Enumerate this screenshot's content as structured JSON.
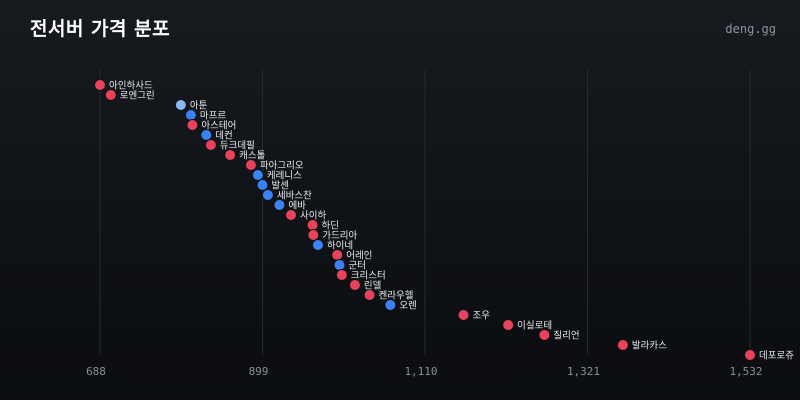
{
  "header": {
    "title": "전서버 가격 분포",
    "brand": "deng.gg"
  },
  "colors": {
    "red": "#e8435a",
    "blue": "#3b82f6",
    "light_blue": "#8ab8f5",
    "grid": "#262b33",
    "point_outline": "#0f1216"
  },
  "chart_data": {
    "type": "scatter",
    "title": "전서버 가격 분포",
    "xlabel": "",
    "ylabel": "",
    "xlim": [
      688,
      1532
    ],
    "x_ticks": [
      688,
      899,
      1110,
      1321,
      1532
    ],
    "x_tick_labels": [
      "688",
      "899",
      "1,110",
      "1,321",
      "1,532"
    ],
    "grid": "vertical",
    "points": [
      {
        "label": "아인하사드",
        "x": 688,
        "color": "red"
      },
      {
        "label": "로엔그린",
        "x": 702,
        "color": "red"
      },
      {
        "label": "아툰",
        "x": 793,
        "color": "light_blue"
      },
      {
        "label": "마프르",
        "x": 806,
        "color": "blue"
      },
      {
        "label": "아스테어",
        "x": 808,
        "color": "red"
      },
      {
        "label": "데컨",
        "x": 826,
        "color": "blue"
      },
      {
        "label": "듀크데필",
        "x": 832,
        "color": "red"
      },
      {
        "label": "캐스톨",
        "x": 857,
        "color": "red"
      },
      {
        "label": "파아그리오",
        "x": 884,
        "color": "red"
      },
      {
        "label": "케레니스",
        "x": 893,
        "color": "blue"
      },
      {
        "label": "발센",
        "x": 899,
        "color": "blue"
      },
      {
        "label": "세바스찬",
        "x": 906,
        "color": "blue"
      },
      {
        "label": "에바",
        "x": 921,
        "color": "blue"
      },
      {
        "label": "사이하",
        "x": 936,
        "color": "red"
      },
      {
        "label": "하딘",
        "x": 964,
        "color": "red"
      },
      {
        "label": "가드리아",
        "x": 965,
        "color": "red"
      },
      {
        "label": "하이네",
        "x": 971,
        "color": "blue"
      },
      {
        "label": "어레인",
        "x": 996,
        "color": "red"
      },
      {
        "label": "군터",
        "x": 999,
        "color": "blue"
      },
      {
        "label": "크리스터",
        "x": 1002,
        "color": "red"
      },
      {
        "label": "린델",
        "x": 1019,
        "color": "red"
      },
      {
        "label": "켄라우헬",
        "x": 1038,
        "color": "red"
      },
      {
        "label": "오렌",
        "x": 1065,
        "color": "blue"
      },
      {
        "label": "조우",
        "x": 1160,
        "color": "red"
      },
      {
        "label": "이실로테",
        "x": 1218,
        "color": "red"
      },
      {
        "label": "질리언",
        "x": 1265,
        "color": "red"
      },
      {
        "label": "발라카스",
        "x": 1367,
        "color": "red"
      },
      {
        "label": "데포로쥬",
        "x": 1532,
        "color": "red"
      }
    ]
  }
}
